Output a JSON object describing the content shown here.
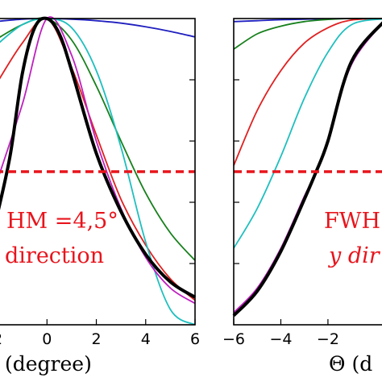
{
  "chart_data": [
    {
      "type": "line",
      "xlim": [
        -2.1,
        6
      ],
      "ylim": [
        0,
        1
      ],
      "xlabel": "(degree)",
      "x_ticks": [
        "2",
        "0",
        "2",
        "4",
        "6"
      ],
      "x_tick_values": [
        -2,
        0,
        2,
        4,
        6
      ],
      "annotations": [
        "HM =4,5°",
        "direction"
      ],
      "half_max_line": 0.5,
      "series": [
        {
          "color": "#1f1fbf",
          "x": [
            -2.1,
            -1,
            0,
            1,
            2,
            3,
            4,
            5,
            6
          ],
          "y": [
            0.99,
            0.998,
            1.0,
            0.998,
            0.993,
            0.985,
            0.973,
            0.958,
            0.94
          ]
        },
        {
          "color": "#17801c",
          "x": [
            -2.1,
            -1,
            0,
            1,
            2,
            3,
            4,
            5,
            6
          ],
          "y": [
            0.93,
            0.98,
            1.0,
            0.93,
            0.78,
            0.6,
            0.43,
            0.3,
            0.21
          ]
        },
        {
          "color": "#e02020",
          "x": [
            -2.1,
            -1,
            0,
            1,
            2,
            3,
            4,
            5,
            6
          ],
          "y": [
            0.78,
            0.92,
            1.0,
            0.84,
            0.62,
            0.41,
            0.26,
            0.15,
            0.08
          ]
        },
        {
          "color": "#1fbfbf",
          "x": [
            -2.1,
            -1,
            0,
            1,
            2,
            3,
            4,
            5,
            6
          ],
          "y": [
            0.91,
            0.98,
            1.0,
            0.97,
            0.83,
            0.58,
            0.27,
            0.05,
            0.0
          ]
        },
        {
          "color": "#bf1fbf",
          "x": [
            -2.1,
            -1,
            0,
            1,
            2,
            3,
            4,
            5,
            6
          ],
          "y": [
            0.45,
            0.72,
            1.0,
            0.88,
            0.6,
            0.38,
            0.22,
            0.12,
            0.07
          ]
        },
        {
          "color": "#000000",
          "x": [
            -2.1,
            -1.5,
            -1,
            -0.5,
            0,
            0.5,
            1,
            2,
            3,
            4,
            5,
            6
          ],
          "y": [
            0.33,
            0.55,
            0.82,
            0.97,
            1.0,
            0.95,
            0.83,
            0.56,
            0.37,
            0.23,
            0.14,
            0.09
          ]
        }
      ]
    },
    {
      "type": "line",
      "xlim": [
        -6,
        0.5
      ],
      "ylim": [
        0,
        1
      ],
      "xlabel": "Θ (d",
      "x_ticks": [
        "−6",
        "−4",
        "−2"
      ],
      "x_tick_values": [
        -6,
        -4,
        -2
      ],
      "annotations": [
        "FWH",
        "y dir"
      ],
      "half_max_line": 0.5,
      "series": [
        {
          "color": "#1f1fbf",
          "x": [
            -6,
            -5,
            -4,
            -3,
            -2,
            -1,
            0.5
          ],
          "y": [
            0.99,
            0.993,
            0.996,
            0.998,
            0.999,
            1.0,
            1.0
          ]
        },
        {
          "color": "#17801c",
          "x": [
            -6,
            -5,
            -4,
            -3,
            -2,
            -1,
            0.5
          ],
          "y": [
            0.9,
            0.95,
            0.975,
            0.99,
            0.997,
            1.0,
            1.0
          ]
        },
        {
          "color": "#e02020",
          "x": [
            -6,
            -5,
            -4,
            -3,
            -2,
            -1,
            0.5
          ],
          "y": [
            0.52,
            0.7,
            0.83,
            0.92,
            0.97,
            0.995,
            1.0
          ]
        },
        {
          "color": "#1fbfbf",
          "x": [
            -6,
            -5,
            -4,
            -3,
            -2,
            -1,
            0.5
          ],
          "y": [
            0.25,
            0.38,
            0.55,
            0.74,
            0.89,
            0.98,
            1.0
          ]
        },
        {
          "color": "#bf1fbf",
          "x": [
            -6,
            -5,
            -4,
            -3,
            -2.5,
            -2,
            -1,
            0.5
          ],
          "y": [
            0.04,
            0.12,
            0.25,
            0.42,
            0.5,
            0.6,
            0.85,
            1.0
          ]
        },
        {
          "color": "#000000",
          "x": [
            -6,
            -5,
            -4,
            -3,
            -2.5,
            -2,
            -1,
            0.5
          ],
          "y": [
            0.03,
            0.11,
            0.24,
            0.41,
            0.5,
            0.6,
            0.86,
            1.0
          ]
        }
      ]
    }
  ]
}
